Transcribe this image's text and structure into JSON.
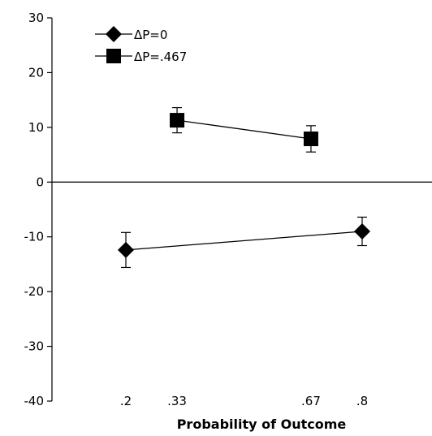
{
  "chart_data": {
    "type": "line",
    "xlabel": "Probability of Outcome",
    "ylabel": "",
    "ylim": [
      -40,
      30
    ],
    "yticks": [
      30,
      20,
      10,
      0,
      -10,
      -20,
      -30,
      -40
    ],
    "ytick_labels": [
      "30",
      "20",
      "10",
      "0",
      "-10",
      "-20",
      "-30",
      "-40"
    ],
    "xticks": [
      0.2,
      0.33,
      0.67,
      0.8
    ],
    "xtick_labels": [
      ".2",
      ".33",
      ".67",
      ".8"
    ],
    "zero_line": true,
    "grid": false,
    "legend_position": "top-left",
    "series": [
      {
        "name": "ΔP=0",
        "marker": "diamond",
        "color": "#000000",
        "points": [
          {
            "x": 0.2,
            "y": -12.4,
            "err": 3.2
          },
          {
            "x": 0.8,
            "y": -9.0,
            "err": 2.6
          }
        ]
      },
      {
        "name": "ΔP=.467",
        "marker": "square",
        "color": "#000000",
        "points": [
          {
            "x": 0.33,
            "y": 11.3,
            "err": 2.3
          },
          {
            "x": 0.67,
            "y": 7.9,
            "err": 2.4
          }
        ]
      }
    ]
  }
}
